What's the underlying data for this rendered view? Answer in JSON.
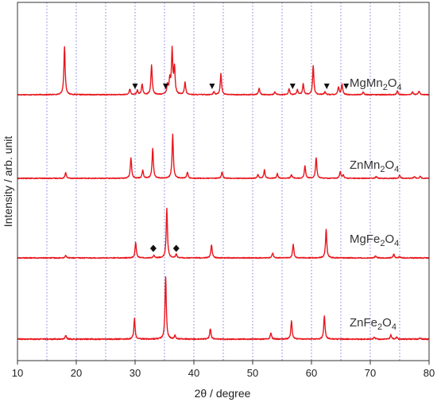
{
  "chart_data": {
    "type": "line",
    "xlabel": "2θ / degree",
    "ylabel": "Intensity / arb. unit",
    "xlim": [
      10,
      80
    ],
    "x_ticks": [
      10,
      20,
      30,
      40,
      50,
      60,
      70,
      80
    ],
    "x_grid": [
      15,
      20,
      25,
      30,
      35,
      40,
      45,
      50,
      55,
      60,
      65,
      70,
      75
    ],
    "grid": "vertical dotted lines",
    "line_color": "#e8161d",
    "grid_color": "#6f6fe0",
    "marker_color": "#111111",
    "series": [
      {
        "name": "MgMn2O4",
        "label_main": "MgMn",
        "label_sub1": "2",
        "label_mid": "O",
        "label_sub2": "4",
        "peaks": [
          {
            "x": 18.0,
            "h": 1.0
          },
          {
            "x": 29.1,
            "h": 0.12
          },
          {
            "x": 30.4,
            "h": 0.09
          },
          {
            "x": 31.2,
            "h": 0.22
          },
          {
            "x": 32.8,
            "h": 0.63
          },
          {
            "x": 35.5,
            "h": 0.2
          },
          {
            "x": 35.9,
            "h": 0.3
          },
          {
            "x": 36.3,
            "h": 0.92
          },
          {
            "x": 36.7,
            "h": 0.55
          },
          {
            "x": 38.5,
            "h": 0.26
          },
          {
            "x": 43.4,
            "h": 0.06
          },
          {
            "x": 44.6,
            "h": 0.45
          },
          {
            "x": 51.1,
            "h": 0.14
          },
          {
            "x": 53.8,
            "h": 0.06
          },
          {
            "x": 56.2,
            "h": 0.12
          },
          {
            "x": 57.6,
            "h": 0.1
          },
          {
            "x": 58.6,
            "h": 0.23
          },
          {
            "x": 60.3,
            "h": 0.6
          },
          {
            "x": 62.3,
            "h": 0.06
          },
          {
            "x": 64.6,
            "h": 0.16
          },
          {
            "x": 65.2,
            "h": 0.22
          },
          {
            "x": 68.8,
            "h": 0.06
          },
          {
            "x": 74.6,
            "h": 0.08
          },
          {
            "x": 77.2,
            "h": 0.06
          },
          {
            "x": 78.3,
            "h": 0.08
          }
        ]
      },
      {
        "name": "ZnMn2O4",
        "label_main": "ZnMn",
        "label_sub1": "2",
        "label_mid": "O",
        "label_sub2": "4",
        "peaks": [
          {
            "x": 18.2,
            "h": 0.12
          },
          {
            "x": 29.3,
            "h": 0.45
          },
          {
            "x": 31.3,
            "h": 0.18
          },
          {
            "x": 33.0,
            "h": 0.65
          },
          {
            "x": 36.4,
            "h": 0.95
          },
          {
            "x": 38.9,
            "h": 0.13
          },
          {
            "x": 44.8,
            "h": 0.14
          },
          {
            "x": 50.9,
            "h": 0.08
          },
          {
            "x": 52.0,
            "h": 0.18
          },
          {
            "x": 54.2,
            "h": 0.1
          },
          {
            "x": 56.6,
            "h": 0.08
          },
          {
            "x": 58.9,
            "h": 0.27
          },
          {
            "x": 60.8,
            "h": 0.45
          },
          {
            "x": 64.9,
            "h": 0.14
          },
          {
            "x": 65.4,
            "h": 0.07
          },
          {
            "x": 71.0,
            "h": 0.04
          },
          {
            "x": 75.0,
            "h": 0.07
          },
          {
            "x": 77.5,
            "h": 0.04
          },
          {
            "x": 78.5,
            "h": 0.04
          }
        ]
      },
      {
        "name": "MgFe2O4",
        "label_main": "MgFe",
        "label_sub1": "2",
        "label_mid": "O",
        "label_sub2": "4",
        "peaks": [
          {
            "x": 18.2,
            "h": 0.05
          },
          {
            "x": 30.1,
            "h": 0.32
          },
          {
            "x": 33.2,
            "h": 0.05
          },
          {
            "x": 35.4,
            "h": 1.0
          },
          {
            "x": 37.0,
            "h": 0.08
          },
          {
            "x": 43.0,
            "h": 0.27
          },
          {
            "x": 53.4,
            "h": 0.1
          },
          {
            "x": 56.9,
            "h": 0.27
          },
          {
            "x": 62.5,
            "h": 0.58
          },
          {
            "x": 70.9,
            "h": 0.04
          },
          {
            "x": 74.0,
            "h": 0.08
          },
          {
            "x": 75.0,
            "h": 0.03
          }
        ]
      },
      {
        "name": "ZnFe2O4",
        "label_main": "ZnFe",
        "label_sub1": "2",
        "label_mid": "O",
        "label_sub2": "4",
        "peaks": [
          {
            "x": 18.2,
            "h": 0.06
          },
          {
            "x": 29.9,
            "h": 0.33
          },
          {
            "x": 35.2,
            "h": 1.0
          },
          {
            "x": 36.8,
            "h": 0.06
          },
          {
            "x": 42.8,
            "h": 0.17
          },
          {
            "x": 53.1,
            "h": 0.1
          },
          {
            "x": 56.6,
            "h": 0.29
          },
          {
            "x": 62.2,
            "h": 0.38
          },
          {
            "x": 70.7,
            "h": 0.03
          },
          {
            "x": 73.5,
            "h": 0.07
          },
          {
            "x": 74.5,
            "h": 0.03
          },
          {
            "x": 78.5,
            "h": 0.02
          }
        ]
      }
    ],
    "annotations": [
      {
        "type": "triangle-down",
        "series": "MgMn2O4",
        "x": [
          30.0,
          35.2,
          43.1,
          56.8,
          62.6,
          65.9
        ]
      },
      {
        "type": "diamond",
        "series": "MgFe2O4",
        "x": [
          33.1,
          37.0
        ]
      }
    ]
  }
}
